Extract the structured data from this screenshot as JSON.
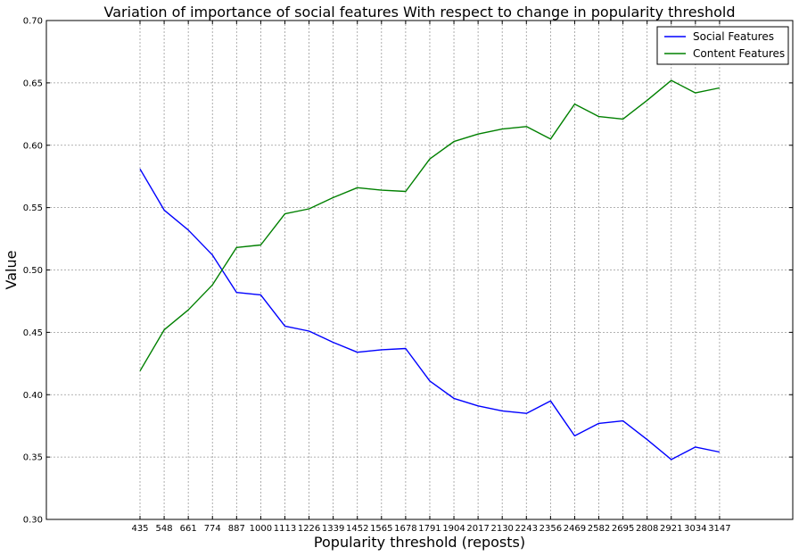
{
  "chart_data": {
    "type": "line",
    "title": "Variation of importance of social features With respect to change in popularity threshold",
    "xlabel": "Popularity threshold (reposts)",
    "ylabel": "Value",
    "ylim": [
      0.3,
      0.7
    ],
    "yticks": [
      "0.30",
      "0.35",
      "0.40",
      "0.45",
      "0.50",
      "0.55",
      "0.60",
      "0.65",
      "0.70"
    ],
    "categories": [
      "435",
      "548",
      "661",
      "774",
      "887",
      "1000",
      "1113",
      "1226",
      "1339",
      "1452",
      "1565",
      "1678",
      "1791",
      "1904",
      "2017",
      "2130",
      "2243",
      "2356",
      "2469",
      "2582",
      "2695",
      "2808",
      "2921",
      "3034",
      "3147"
    ],
    "grid": true,
    "legend_position": "top-right",
    "series": [
      {
        "name": "Social Features",
        "color": "#0000ff",
        "values": [
          0.581,
          0.548,
          0.532,
          0.512,
          0.482,
          0.48,
          0.455,
          0.451,
          0.442,
          0.434,
          0.436,
          0.437,
          0.411,
          0.397,
          0.391,
          0.387,
          0.385,
          0.395,
          0.367,
          0.377,
          0.379,
          0.364,
          0.348,
          0.358,
          0.354
        ]
      },
      {
        "name": "Content Features",
        "color": "#008000",
        "values": [
          0.419,
          0.452,
          0.468,
          0.488,
          0.518,
          0.52,
          0.545,
          0.549,
          0.558,
          0.566,
          0.564,
          0.563,
          0.589,
          0.603,
          0.609,
          0.613,
          0.615,
          0.605,
          0.633,
          0.623,
          0.621,
          0.636,
          0.652,
          0.642,
          0.646
        ]
      }
    ]
  }
}
